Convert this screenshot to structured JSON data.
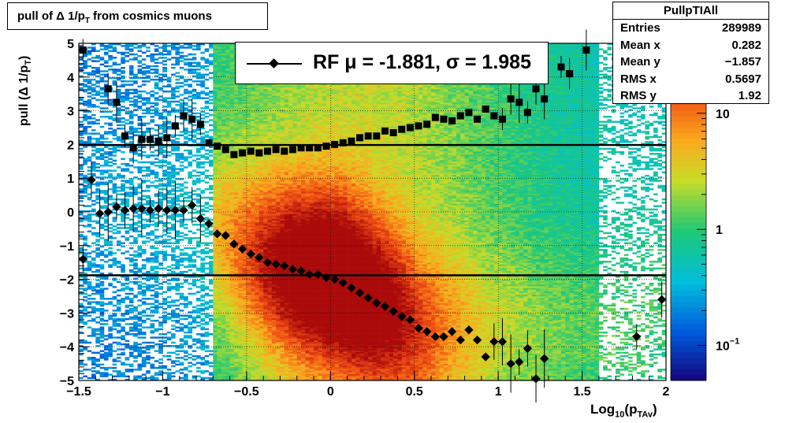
{
  "title": {
    "prefix": "pull of ",
    "delta": "Δ",
    "mid": " 1/p",
    "sub": "T",
    "suffix": " from cosmics muons"
  },
  "stats": {
    "name": "PullpTIAll",
    "rows": [
      {
        "label": "Entries",
        "value": "289989"
      },
      {
        "label": "Mean x",
        "value": "0.282"
      },
      {
        "label": "Mean y",
        "value": "−1.857"
      },
      {
        "label": "RMS x",
        "value": "0.5697"
      },
      {
        "label": "RMS y",
        "value": "1.92"
      }
    ]
  },
  "fit": {
    "text": "RF μ = -1.881, σ =   1.985"
  },
  "axes": {
    "ylabel_main": "pull (Δ 1/p",
    "ylabel_sub": "T",
    "ylabel_end": ")",
    "xlabel_main": "Log",
    "xlabel_sub1": "10",
    "xlabel_mid": "(p",
    "xlabel_sub2": "TAv",
    "xlabel_end": ")"
  },
  "colors": {
    "background": "#ffffff",
    "frame": "#000000",
    "marker": "#000000"
  },
  "chart_data": {
    "type": "heatmap",
    "xlim": [
      -1.5,
      2
    ],
    "ylim": [
      -5,
      5
    ],
    "x_ticks": [
      "−1.5",
      "−1",
      "−0.5",
      "0",
      "0.5",
      "1",
      "1.5",
      "2"
    ],
    "x_tick_values": [
      -1.5,
      -1,
      -0.5,
      0,
      0.5,
      1,
      1.5,
      2
    ],
    "y_ticks": [
      "5",
      "4",
      "3",
      "2",
      "1",
      "0",
      "−1",
      "−2",
      "−3",
      "−4",
      "−5"
    ],
    "y_tick_values": [
      5,
      4,
      3,
      2,
      1,
      0,
      -1,
      -2,
      -3,
      -4,
      -5
    ],
    "z_ticks": [
      "10",
      "1",
      "10−1"
    ],
    "z_tick_values": [
      10,
      1,
      0.1
    ],
    "zscale": "log",
    "grid": true,
    "horizontal_lines": [
      1.985,
      -1.881
    ],
    "mean_series": {
      "marker": "diamond",
      "points": [
        [
          -1.475,
          -1.4
        ],
        [
          -1.425,
          0.95
        ],
        [
          -1.375,
          -0.05
        ],
        [
          -1.325,
          0.0
        ],
        [
          -1.275,
          0.15
        ],
        [
          -1.225,
          0.05
        ],
        [
          -1.175,
          0.1
        ],
        [
          -1.125,
          0.1
        ],
        [
          -1.075,
          0.05
        ],
        [
          -1.025,
          0.1
        ],
        [
          -0.975,
          0.05
        ],
        [
          -0.925,
          0.05
        ],
        [
          -0.875,
          0.05
        ],
        [
          -0.825,
          0.2
        ],
        [
          -0.775,
          -0.2
        ],
        [
          -0.725,
          -0.35
        ],
        [
          -0.675,
          -0.65
        ],
        [
          -0.625,
          -0.7
        ],
        [
          -0.575,
          -0.95
        ],
        [
          -0.525,
          -1.1
        ],
        [
          -0.475,
          -1.25
        ],
        [
          -0.425,
          -1.35
        ],
        [
          -0.375,
          -1.5
        ],
        [
          -0.325,
          -1.55
        ],
        [
          -0.275,
          -1.6
        ],
        [
          -0.225,
          -1.7
        ],
        [
          -0.175,
          -1.75
        ],
        [
          -0.125,
          -1.85
        ],
        [
          -0.075,
          -1.85
        ],
        [
          -0.025,
          -1.95
        ],
        [
          0.025,
          -2.0
        ],
        [
          0.075,
          -2.1
        ],
        [
          0.125,
          -2.25
        ],
        [
          0.175,
          -2.4
        ],
        [
          0.225,
          -2.55
        ],
        [
          0.275,
          -2.7
        ],
        [
          0.325,
          -2.8
        ],
        [
          0.375,
          -2.95
        ],
        [
          0.425,
          -3.1
        ],
        [
          0.475,
          -3.2
        ],
        [
          0.525,
          -3.45
        ],
        [
          0.575,
          -3.55
        ],
        [
          0.625,
          -3.7
        ],
        [
          0.675,
          -3.7
        ],
        [
          0.725,
          -3.55
        ],
        [
          0.775,
          -3.8
        ],
        [
          0.825,
          -3.5
        ],
        [
          0.875,
          -3.8
        ],
        [
          0.925,
          -4.3
        ],
        [
          0.975,
          -3.85
        ],
        [
          1.025,
          -3.85
        ],
        [
          1.075,
          -4.5
        ],
        [
          1.125,
          -4.45
        ],
        [
          1.175,
          -4.05
        ],
        [
          1.225,
          -4.95
        ],
        [
          1.275,
          -4.35
        ],
        [
          1.825,
          -3.7
        ],
        [
          1.975,
          -2.6
        ]
      ]
    },
    "rms_series": {
      "marker": "square",
      "points": [
        [
          -1.475,
          4.8
        ],
        [
          -1.325,
          3.65
        ],
        [
          -1.275,
          3.25
        ],
        [
          -1.225,
          2.25
        ],
        [
          -1.175,
          1.9
        ],
        [
          -1.125,
          2.15
        ],
        [
          -1.075,
          2.15
        ],
        [
          -1.025,
          2.1
        ],
        [
          -0.975,
          2.2
        ],
        [
          -0.925,
          2.55
        ],
        [
          -0.875,
          2.85
        ],
        [
          -0.825,
          2.75
        ],
        [
          -0.775,
          2.6
        ],
        [
          -0.725,
          2.05
        ],
        [
          -0.675,
          1.95
        ],
        [
          -0.625,
          1.85
        ],
        [
          -0.575,
          1.7
        ],
        [
          -0.525,
          1.75
        ],
        [
          -0.475,
          1.8
        ],
        [
          -0.425,
          1.75
        ],
        [
          -0.375,
          1.8
        ],
        [
          -0.325,
          1.85
        ],
        [
          -0.275,
          1.8
        ],
        [
          -0.225,
          1.85
        ],
        [
          -0.175,
          1.9
        ],
        [
          -0.125,
          1.9
        ],
        [
          -0.075,
          1.9
        ],
        [
          -0.025,
          1.95
        ],
        [
          0.025,
          2.0
        ],
        [
          0.075,
          2.05
        ],
        [
          0.125,
          2.1
        ],
        [
          0.175,
          2.2
        ],
        [
          0.225,
          2.25
        ],
        [
          0.275,
          2.25
        ],
        [
          0.325,
          2.4
        ],
        [
          0.375,
          2.35
        ],
        [
          0.425,
          2.45
        ],
        [
          0.475,
          2.5
        ],
        [
          0.525,
          2.55
        ],
        [
          0.575,
          2.6
        ],
        [
          0.625,
          2.8
        ],
        [
          0.675,
          2.75
        ],
        [
          0.725,
          2.7
        ],
        [
          0.775,
          2.85
        ],
        [
          0.825,
          2.95
        ],
        [
          0.875,
          2.75
        ],
        [
          0.925,
          3.05
        ],
        [
          0.975,
          2.85
        ],
        [
          1.025,
          2.75
        ],
        [
          1.075,
          3.35
        ],
        [
          1.125,
          3.25
        ],
        [
          1.175,
          2.95
        ],
        [
          1.225,
          3.65
        ],
        [
          1.275,
          3.35
        ],
        [
          1.375,
          4.3
        ],
        [
          1.425,
          4.1
        ],
        [
          1.525,
          4.8
        ]
      ]
    }
  }
}
